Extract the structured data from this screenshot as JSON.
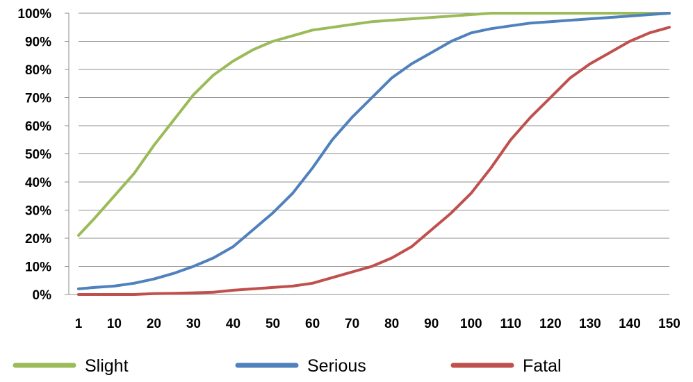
{
  "chart_data": {
    "type": "line",
    "title": "",
    "xlabel": "",
    "ylabel": "",
    "ylim": [
      0,
      100
    ],
    "y_tick_values": [
      0,
      10,
      20,
      30,
      40,
      50,
      60,
      70,
      80,
      90,
      100
    ],
    "y_tick_labels": [
      "0%",
      "10%",
      "20%",
      "30%",
      "40%",
      "50%",
      "60%",
      "70%",
      "80%",
      "90%",
      "100%"
    ],
    "x": [
      1,
      5,
      10,
      15,
      20,
      25,
      30,
      35,
      40,
      45,
      50,
      55,
      60,
      65,
      70,
      75,
      80,
      85,
      90,
      95,
      100,
      105,
      110,
      115,
      120,
      125,
      130,
      135,
      140,
      145,
      150
    ],
    "x_tick_labels": [
      "1",
      "10",
      "20",
      "30",
      "40",
      "50",
      "60",
      "70",
      "80",
      "90",
      "100",
      "110",
      "120",
      "130",
      "140",
      "150"
    ],
    "grid": "horizontal",
    "legend_position": "bottom",
    "series": [
      {
        "name": "Slight",
        "color": "#9bbb59",
        "values": [
          21,
          27,
          35,
          43,
          53,
          62,
          71,
          78,
          83,
          87,
          90,
          92,
          94,
          95,
          96,
          97,
          97.5,
          98,
          98.5,
          99,
          99.5,
          100,
          100,
          100,
          100,
          100,
          100,
          100,
          100,
          100,
          100
        ]
      },
      {
        "name": "Serious",
        "color": "#4f81bd",
        "values": [
          2,
          2.5,
          3,
          4,
          5.5,
          7.5,
          10,
          13,
          17,
          23,
          29,
          36,
          45,
          55,
          63,
          70,
          77,
          82,
          86,
          90,
          93,
          94.5,
          95.5,
          96.5,
          97,
          97.5,
          98,
          98.5,
          99,
          99.5,
          100
        ]
      },
      {
        "name": "Fatal",
        "color": "#c0504d",
        "values": [
          0,
          0,
          0,
          0,
          0.3,
          0.4,
          0.6,
          0.8,
          1.5,
          2,
          2.5,
          3,
          4,
          6,
          8,
          10,
          13,
          17,
          23,
          29,
          36,
          45,
          55,
          63,
          70,
          77,
          82,
          86,
          90,
          93,
          95
        ]
      }
    ]
  }
}
